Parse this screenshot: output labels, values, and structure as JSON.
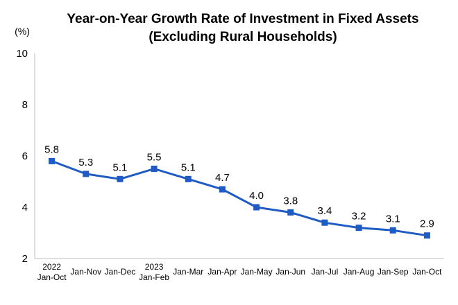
{
  "chart_data": {
    "type": "line",
    "title": "Year-on-Year Growth Rate of Investment in Fixed Assets",
    "subtitle": "(Excluding Rural Households)",
    "unit_label": "(%)",
    "xlabel": "",
    "ylabel": "",
    "ylim": [
      2,
      10
    ],
    "yticks": [
      2,
      4,
      6,
      8,
      10
    ],
    "grid": false,
    "categories": [
      [
        "2022",
        "Jan-Oct"
      ],
      [
        "Jan-Nov"
      ],
      [
        "Jan-Dec"
      ],
      [
        "2023",
        "Jan-Feb"
      ],
      [
        "Jan-Mar"
      ],
      [
        "Jan-Apr"
      ],
      [
        "Jan-May"
      ],
      [
        "Jan-Jun"
      ],
      [
        "Jan-Jul"
      ],
      [
        "Jan-Aug"
      ],
      [
        "Jan-Sep"
      ],
      [
        "Jan-Oct"
      ]
    ],
    "series": [
      {
        "name": "Year-on-Year Growth Rate",
        "color": "#1f5bc4",
        "values": [
          5.8,
          5.3,
          5.1,
          5.5,
          5.1,
          4.7,
          4.0,
          3.8,
          3.4,
          3.2,
          3.1,
          2.9
        ],
        "labels": [
          "5.8",
          "5.3",
          "5.1",
          "5.5",
          "5.1",
          "4.7",
          "4.0",
          "3.8",
          "3.4",
          "3.2",
          "3.1",
          "2.9"
        ]
      }
    ]
  }
}
